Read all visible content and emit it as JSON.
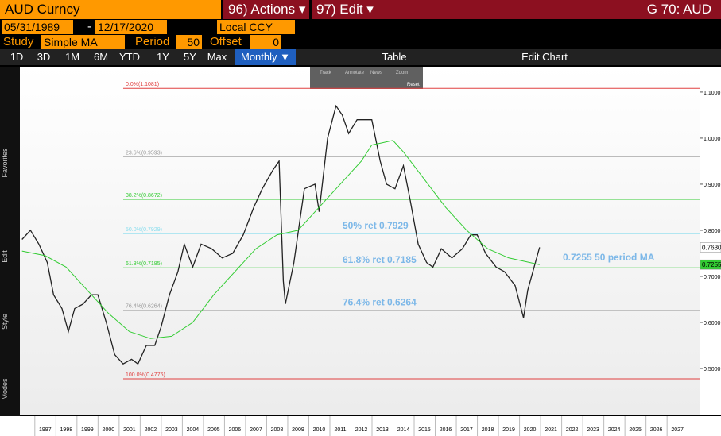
{
  "toolbar": {
    "security": "AUD Curncy",
    "actions": "96) Actions ▾",
    "edit": "97) Edit ▾",
    "page": "G 70: AUD",
    "start": "05/31/1989",
    "dash": "-",
    "end": "12/17/2020",
    "currency": "Local CCY",
    "study_label": "Study",
    "study": "Simple MA",
    "period_label": "Period",
    "period": "50",
    "offset_label": "Offset",
    "offset": "0",
    "ranges": [
      "1D",
      "3D",
      "1M",
      "6M",
      "YTD",
      "1Y",
      "5Y",
      "Max"
    ],
    "frequency": "Monthly ▼",
    "table": "Table",
    "edit_chart": "Edit Chart",
    "tools": [
      "Track",
      "Annotate",
      "News",
      "Zoom"
    ],
    "reset": "Reset",
    "side": [
      "Favorites",
      "Edit",
      "Style",
      "Modes"
    ]
  },
  "chart_data": {
    "type": "line",
    "ylim": [
      0.4,
      1.155
    ],
    "xlim": [
      1996.3,
      2028.55
    ],
    "yticks": [
      {
        "value": 0.5,
        "label": "0.5000"
      },
      {
        "value": 0.6,
        "label": "0.6000"
      },
      {
        "value": 0.7,
        "label": "0.7000"
      },
      {
        "value": 0.8,
        "label": "0.8000"
      },
      {
        "value": 0.9,
        "label": "0.9000"
      },
      {
        "value": 1.0,
        "label": "1.0000"
      },
      {
        "value": 1.1,
        "label": "1.1000"
      }
    ],
    "xticks": [
      {
        "value": 1997.5,
        "label": "1997"
      },
      {
        "value": 1998.5,
        "label": "1998"
      },
      {
        "value": 1999.5,
        "label": "1999"
      },
      {
        "value": 2000.5,
        "label": "2000"
      },
      {
        "value": 2001.5,
        "label": "2001"
      },
      {
        "value": 2002.5,
        "label": "2002"
      },
      {
        "value": 2003.5,
        "label": "2003"
      },
      {
        "value": 2004.5,
        "label": "2004"
      },
      {
        "value": 2005.5,
        "label": "2005"
      },
      {
        "value": 2006.5,
        "label": "2006"
      },
      {
        "value": 2007.5,
        "label": "2007"
      },
      {
        "value": 2008.5,
        "label": "2008"
      },
      {
        "value": 2009.5,
        "label": "2009"
      },
      {
        "value": 2010.5,
        "label": "2010"
      },
      {
        "value": 2011.5,
        "label": "2011"
      },
      {
        "value": 2012.5,
        "label": "2012"
      },
      {
        "value": 2013.5,
        "label": "2013"
      },
      {
        "value": 2014.5,
        "label": "2014"
      },
      {
        "value": 2015.5,
        "label": "2015"
      },
      {
        "value": 2016.5,
        "label": "2016"
      },
      {
        "value": 2017.5,
        "label": "2017"
      },
      {
        "value": 2018.5,
        "label": "2018"
      },
      {
        "value": 2019.5,
        "label": "2019"
      },
      {
        "value": 2020.5,
        "label": "2020"
      },
      {
        "value": 2021.5,
        "label": "2021"
      },
      {
        "value": 2022.5,
        "label": "2022"
      },
      {
        "value": 2023.5,
        "label": "2023"
      },
      {
        "value": 2024.5,
        "label": "2024"
      },
      {
        "value": 2025.5,
        "label": "2025"
      },
      {
        "value": 2026.5,
        "label": "2026"
      },
      {
        "value": 2027.5,
        "label": "2027"
      }
    ],
    "series": [
      {
        "color": "#222222",
        "x": [
          1996.4,
          1996.8,
          1997.2,
          1997.6,
          1997.9,
          1998.3,
          1998.6,
          1998.9,
          1999.3,
          1999.7,
          2000.0,
          2000.4,
          2000.8,
          2001.2,
          2001.6,
          2001.9,
          2002.3,
          2002.7,
          2003.0,
          2003.4,
          2003.8,
          2004.1,
          2004.5,
          2004.9,
          2005.4,
          2005.9,
          2006.4,
          2006.9,
          2007.4,
          2007.8,
          2008.3,
          2008.6,
          2008.8,
          2008.9,
          2009.3,
          2009.8,
          2010.3,
          2010.5,
          2010.9,
          2011.3,
          2011.6,
          2011.9,
          2012.3,
          2012.7,
          2013.0,
          2013.4,
          2013.7,
          2014.1,
          2014.5,
          2014.8,
          2015.2,
          2015.6,
          2015.9,
          2016.3,
          2016.8,
          2017.3,
          2017.7,
          2018.0,
          2018.4,
          2018.9,
          2019.3,
          2019.8,
          2020.2,
          2020.4,
          2020.7,
          2020.96
        ],
        "values": [
          0.78,
          0.8,
          0.77,
          0.73,
          0.66,
          0.63,
          0.58,
          0.63,
          0.64,
          0.66,
          0.66,
          0.6,
          0.53,
          0.51,
          0.52,
          0.51,
          0.55,
          0.55,
          0.59,
          0.66,
          0.71,
          0.77,
          0.72,
          0.77,
          0.76,
          0.74,
          0.75,
          0.79,
          0.85,
          0.89,
          0.93,
          0.95,
          0.69,
          0.64,
          0.73,
          0.89,
          0.9,
          0.84,
          1.0,
          1.07,
          1.05,
          1.01,
          1.04,
          1.04,
          1.04,
          0.95,
          0.9,
          0.89,
          0.94,
          0.87,
          0.77,
          0.73,
          0.72,
          0.76,
          0.74,
          0.76,
          0.79,
          0.79,
          0.75,
          0.72,
          0.71,
          0.68,
          0.61,
          0.67,
          0.72,
          0.763
        ]
      },
      {
        "color": "#33cc33",
        "x": [
          1996.4,
          1997.5,
          1998.5,
          1999.5,
          2000.5,
          2001.5,
          2002.5,
          2003.5,
          2004.5,
          2005.5,
          2006.5,
          2007.5,
          2008.5,
          2009.5,
          2010.5,
          2011.5,
          2012.5,
          2013.0,
          2013.5,
          2014.0,
          2014.5,
          2015.5,
          2016.5,
          2017.5,
          2018.5,
          2019.5,
          2020.96
        ],
        "values": [
          0.755,
          0.745,
          0.72,
          0.67,
          0.62,
          0.58,
          0.565,
          0.57,
          0.6,
          0.66,
          0.71,
          0.76,
          0.79,
          0.8,
          0.85,
          0.9,
          0.95,
          0.985,
          0.99,
          0.995,
          0.97,
          0.91,
          0.85,
          0.8,
          0.76,
          0.74,
          0.7255
        ]
      }
    ],
    "levels": [
      {
        "label": "0.0%(1.1081)",
        "value": 1.1081,
        "color": "#e04040"
      },
      {
        "label": "23.6%(0.9593)",
        "value": 0.9593,
        "color": "#bbbbbb"
      },
      {
        "label": "38.2%(0.8672)",
        "value": 0.8672,
        "color": "#33cc33"
      },
      {
        "label": "50.0%(0.7929)",
        "value": 0.7929,
        "color": "#88ddee"
      },
      {
        "label": "61.8%(0.7185)",
        "value": 0.7185,
        "color": "#33cc33"
      },
      {
        "label": "76.4%(0.6264)",
        "value": 0.6264,
        "color": "#bbbbbb"
      },
      {
        "label": "100.0%(0.4776)",
        "value": 0.4776,
        "color": "#e04040"
      }
    ],
    "annotations": [
      "50% ret 0.7929",
      "61.8% ret 0.7185",
      "76.4% ret 0.6264",
      "0.7255 50 period MA"
    ],
    "last_price": {
      "value": 0.763,
      "label": "0.7630"
    },
    "last_ma": {
      "value": 0.7255,
      "label": "0.7255"
    }
  }
}
